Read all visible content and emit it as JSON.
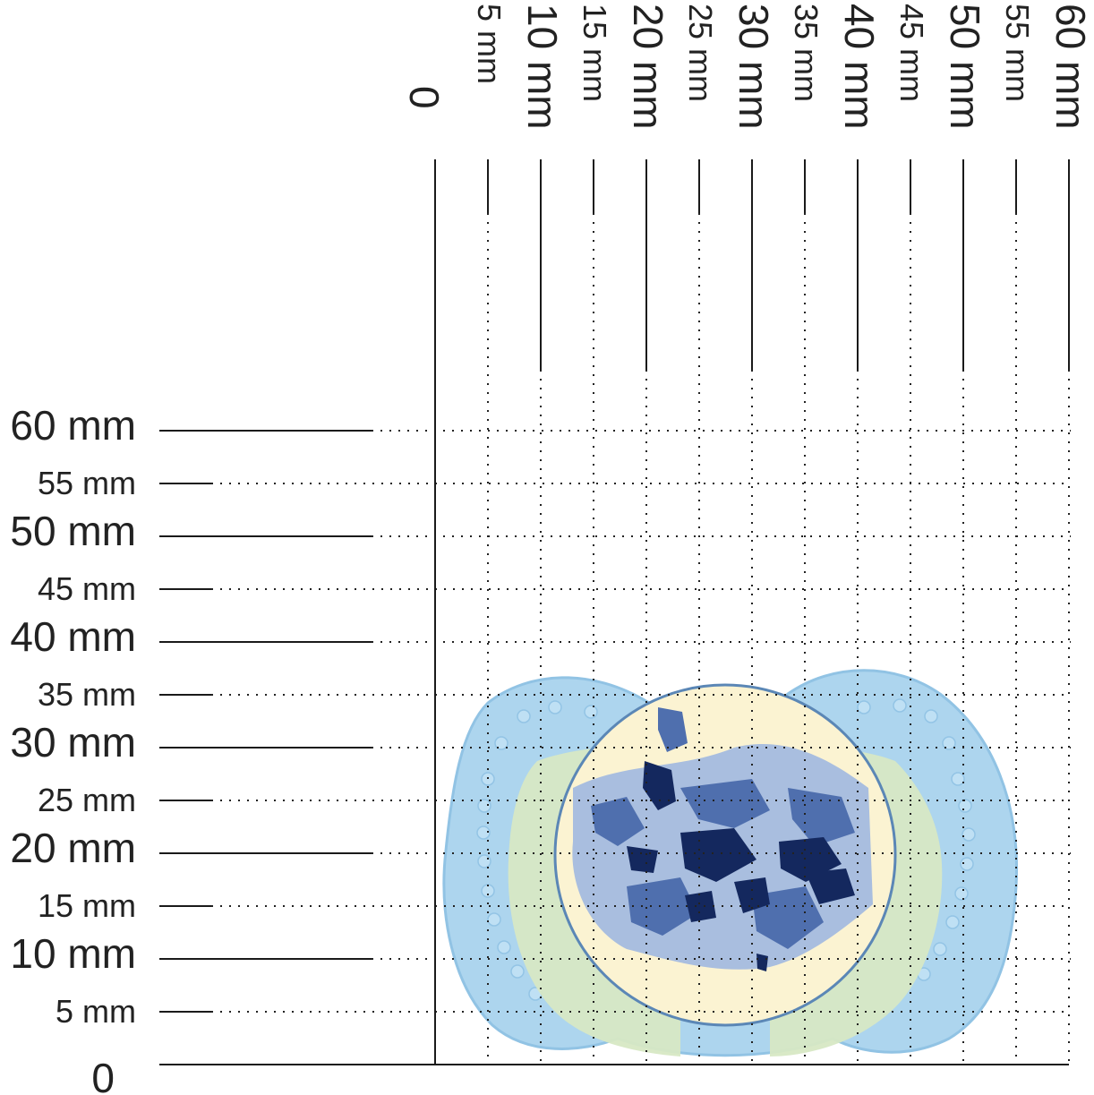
{
  "ruler": {
    "origin_label": "0",
    "x_ticks": [
      {
        "label": "5 mm",
        "value": 5,
        "major": false
      },
      {
        "label": "10 mm",
        "value": 10,
        "major": true
      },
      {
        "label": "15 mm",
        "value": 15,
        "major": false
      },
      {
        "label": "20 mm",
        "value": 20,
        "major": true
      },
      {
        "label": "25 mm",
        "value": 25,
        "major": false
      },
      {
        "label": "30 mm",
        "value": 30,
        "major": true
      },
      {
        "label": "35 mm",
        "value": 35,
        "major": false
      },
      {
        "label": "40 mm",
        "value": 40,
        "major": true
      },
      {
        "label": "45 mm",
        "value": 45,
        "major": false
      },
      {
        "label": "50 mm",
        "value": 50,
        "major": true
      },
      {
        "label": "55 mm",
        "value": 55,
        "major": false
      },
      {
        "label": "60 mm",
        "value": 60,
        "major": true
      }
    ],
    "y_ticks": [
      {
        "label": "5 mm",
        "value": 5,
        "major": false
      },
      {
        "label": "10 mm",
        "value": 10,
        "major": true
      },
      {
        "label": "15 mm",
        "value": 15,
        "major": false
      },
      {
        "label": "20 mm",
        "value": 20,
        "major": true
      },
      {
        "label": "25 mm",
        "value": 25,
        "major": false
      },
      {
        "label": "30 mm",
        "value": 30,
        "major": true
      },
      {
        "label": "35 mm",
        "value": 35,
        "major": false
      },
      {
        "label": "40 mm",
        "value": 40,
        "major": true
      },
      {
        "label": "45 mm",
        "value": 45,
        "major": false
      },
      {
        "label": "50 mm",
        "value": 50,
        "major": true
      },
      {
        "label": "55 mm",
        "value": 55,
        "major": false
      },
      {
        "label": "60 mm",
        "value": 60,
        "major": true
      }
    ]
  },
  "colors": {
    "ruler_line": "#1a1a1a",
    "grid_dots": "#222222",
    "shield_blue": "#a9d3ee",
    "shield_blue_edge": "#8cc0e3",
    "ring_green": "#d7e8c4",
    "button_cream": "#fbf3d2",
    "pattern_dark": "#14285e",
    "pattern_mid": "#4f6fae",
    "pattern_light": "#a9bedf"
  },
  "object": {
    "icon": "pacifier-icon"
  }
}
